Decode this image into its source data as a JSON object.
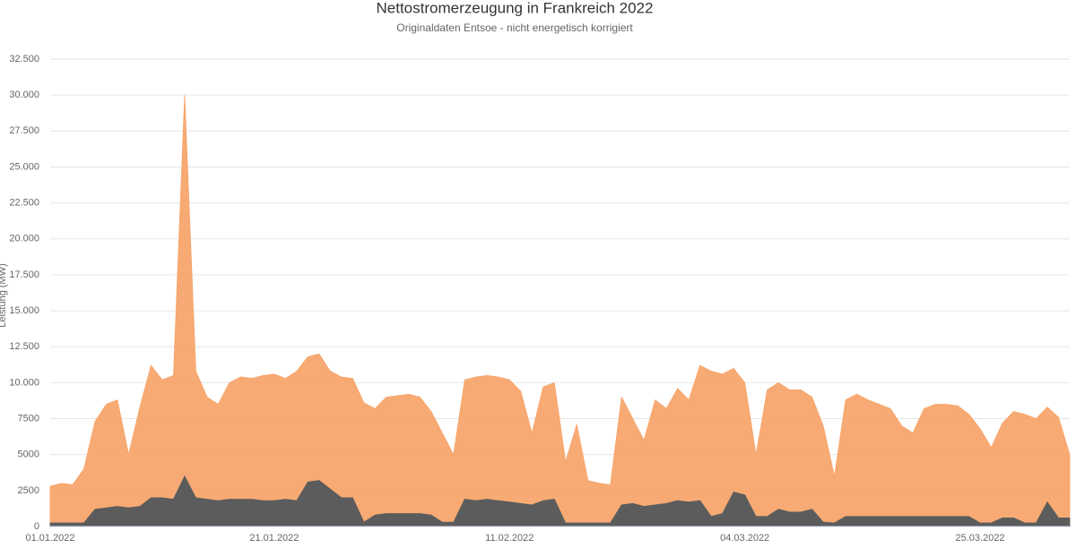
{
  "chart_data": {
    "type": "area",
    "title": "Nettostromerzeugung in Frankreich 2022",
    "subtitle": "Originaldaten Entsoe - nicht energetisch korrigiert",
    "y_label": "Leistung (MW)",
    "x": [
      "01.01.2022",
      null,
      null,
      null,
      null,
      null,
      null,
      null,
      null,
      null,
      null,
      null,
      null,
      null,
      null,
      null,
      null,
      null,
      null,
      null,
      "21.01.2022",
      null,
      null,
      null,
      null,
      null,
      null,
      null,
      null,
      null,
      null,
      null,
      null,
      null,
      null,
      null,
      null,
      null,
      null,
      null,
      null,
      "11.02.2022",
      null,
      null,
      null,
      null,
      null,
      null,
      null,
      null,
      null,
      null,
      null,
      null,
      null,
      null,
      null,
      null,
      null,
      null,
      null,
      null,
      "04.03.2022",
      null,
      null,
      null,
      null,
      null,
      null,
      null,
      null,
      null,
      null,
      null,
      null,
      null,
      null,
      null,
      null,
      null,
      null,
      null,
      null,
      "25.03.2022",
      null,
      null,
      null,
      null,
      null,
      null,
      null,
      null
    ],
    "series": [
      {
        "color": "#f7a56c",
        "values": [
          2800,
          3000,
          2900,
          4000,
          7300,
          8500,
          8800,
          5000,
          8300,
          11200,
          10200,
          10500,
          30000,
          10800,
          9000,
          8500,
          10000,
          10400,
          10300,
          10500,
          10600,
          10300,
          10800,
          11800,
          12000,
          10800,
          10400,
          10300,
          8600,
          8200,
          9000,
          9100,
          9200,
          9000,
          8000,
          6500,
          5000,
          10200,
          10400,
          10500,
          10400,
          10200,
          9400,
          6500,
          9700,
          10000,
          4500,
          7100,
          3200,
          3000,
          2900,
          9000,
          7500,
          6000,
          8800,
          8200,
          9600,
          8800,
          11200,
          10800,
          10600,
          11000,
          10000,
          5000,
          9500,
          10000,
          9500,
          9500,
          9000,
          7000,
          3500,
          8800,
          9200,
          8800,
          8500,
          8200,
          7000,
          6500,
          8200,
          8500,
          8500,
          8400,
          7800,
          6800,
          5500,
          7200,
          8000,
          7800,
          7500,
          8300,
          7600,
          5000
        ]
      },
      {
        "color": "#5c5c5c",
        "values": [
          250,
          250,
          250,
          250,
          1200,
          1300,
          1400,
          1300,
          1400,
          2000,
          2000,
          1900,
          3500,
          2000,
          1900,
          1800,
          1900,
          1900,
          1900,
          1800,
          1800,
          1900,
          1800,
          3100,
          3200,
          2600,
          2000,
          2000,
          300,
          800,
          900,
          900,
          900,
          900,
          800,
          300,
          300,
          1900,
          1800,
          1900,
          1800,
          1700,
          1600,
          1500,
          1800,
          1900,
          250,
          250,
          250,
          250,
          250,
          1500,
          1600,
          1400,
          1500,
          1600,
          1800,
          1700,
          1800,
          700,
          900,
          2400,
          2200,
          700,
          700,
          1200,
          1000,
          1000,
          1200,
          300,
          250,
          700,
          700,
          700,
          700,
          700,
          700,
          700,
          700,
          700,
          700,
          700,
          700,
          250,
          250,
          600,
          600,
          250,
          250,
          1700,
          600,
          600
        ]
      }
    ],
    "ylim": [
      0,
      32500
    ],
    "yticks": [
      0,
      2500,
      5000,
      7500,
      {
        "value": 10000,
        "label": "10.000"
      },
      {
        "value": 12500,
        "label": "12.500"
      },
      {
        "value": 15000,
        "label": "15.000"
      },
      {
        "value": 17500,
        "label": "17.500"
      },
      {
        "value": 20000,
        "label": "20.000"
      },
      {
        "value": 22500,
        "label": "22.500"
      },
      {
        "value": 25000,
        "label": "25.000"
      },
      {
        "value": 27500,
        "label": "27.500"
      },
      {
        "value": 30000,
        "label": "30.000"
      },
      {
        "value": 32500,
        "label": "32.500"
      }
    ],
    "grid": true
  }
}
